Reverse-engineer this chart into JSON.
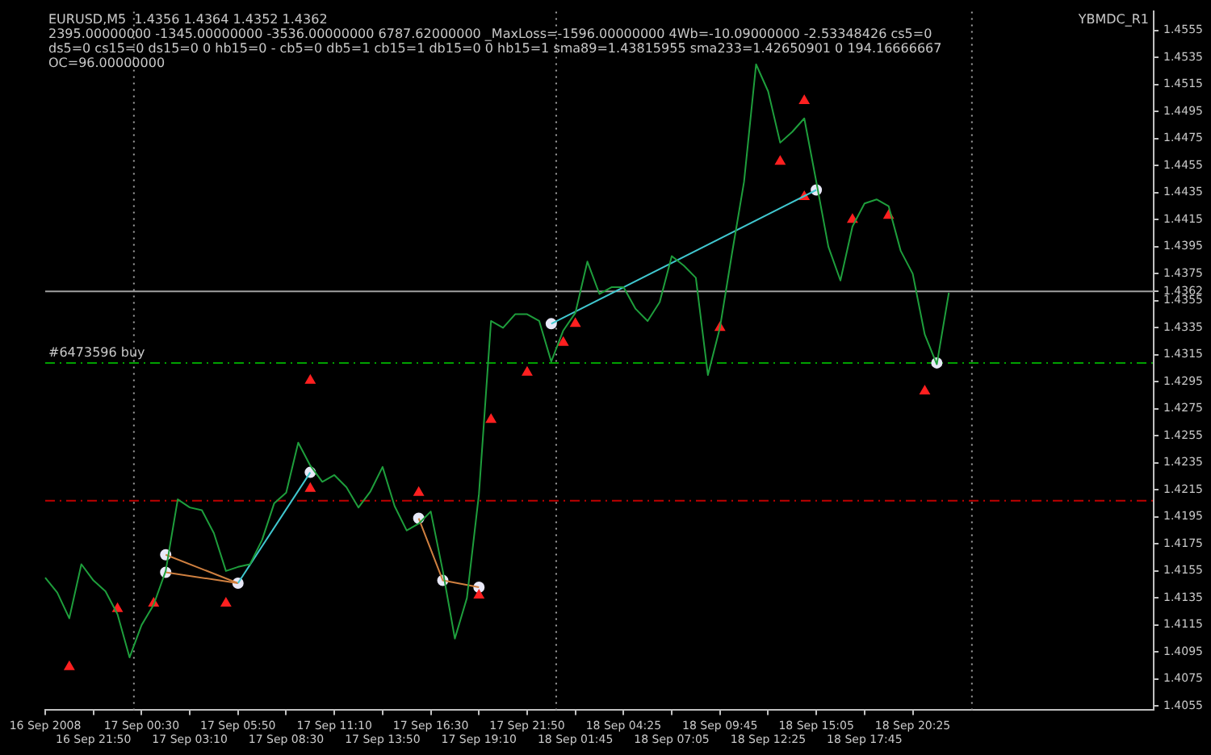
{
  "chart_data": {
    "type": "line",
    "annotations": [
      "EURUSD,M5  1.4356 1.4364 1.4352 1.4362",
      "2395.00000000 -1345.00000000 -3536.00000000 6787.62000000 _MaxLoss=-1596.00000000 4Wb=-10.09000000 -2.53348426 cs5=0 ds5=0 cs15=0 ds15=0 0 hb15=0 - cb5=0 db5=1 cb15=1 db15=0 0 hb15=1 sma89=1.43815955 sma233=1.42650901 0 194.16666667 OC=96.00000000",
      "YBMDC_R1"
    ],
    "categories": [
      "16 Sep 2008",
      null,
      null,
      null,
      "16 Sep 21:50",
      null,
      null,
      null,
      "17 Sep 00:30",
      null,
      null,
      null,
      "17 Sep 03:10",
      null,
      null,
      null,
      "17 Sep 05:50",
      null,
      null,
      null,
      "17 Sep 08:30",
      null,
      null,
      null,
      "17 Sep 11:10",
      null,
      null,
      null,
      "17 Sep 13:50",
      null,
      null,
      null,
      "17 Sep 16:30",
      null,
      null,
      null,
      "17 Sep 19:10",
      null,
      null,
      null,
      "17 Sep 21:50",
      null,
      null,
      null,
      "18 Sep 01:45",
      null,
      null,
      null,
      "18 Sep 04:25",
      null,
      null,
      null,
      "18 Sep 07:05",
      null,
      null,
      null,
      "18 Sep 09:45",
      null,
      null,
      null,
      "18 Sep 12:25",
      null,
      null,
      null,
      "18 Sep 15:05",
      null,
      null,
      null,
      "18 Sep 17:45",
      null,
      null,
      null,
      "18 Sep 20:25",
      null,
      null,
      null,
      null,
      null,
      null,
      null,
      null,
      null,
      null,
      null,
      null,
      null,
      null,
      null,
      null,
      null,
      null,
      null,
      null
    ],
    "series": [
      {
        "color": "#1e9e3c",
        "values": [
          1.415,
          1.4139,
          1.412,
          1.416,
          1.4148,
          1.414,
          1.4123,
          1.4091,
          1.4115,
          1.413,
          1.4155,
          1.4208,
          1.4202,
          1.42,
          1.4183,
          1.4155,
          1.4158,
          1.416,
          1.4178,
          1.4205,
          1.4213,
          1.425,
          1.4233,
          1.4221,
          1.4226,
          1.4217,
          1.4202,
          1.4214,
          1.4232,
          1.4203,
          1.4185,
          1.419,
          1.4199,
          1.4155,
          1.4105,
          1.4135,
          1.4212,
          1.434,
          1.4335,
          1.4345,
          1.4345,
          1.434,
          1.431,
          1.4333,
          1.4346,
          1.4384,
          1.436,
          1.4365,
          1.4365,
          1.4349,
          1.434,
          1.4354,
          1.4388,
          1.4381,
          1.4372,
          1.43,
          1.4335,
          1.439,
          1.4443,
          1.453,
          1.451,
          1.4472,
          1.448,
          1.449,
          1.4443,
          1.4395,
          1.437,
          1.441,
          1.4427,
          1.443,
          1.4425,
          1.4392,
          1.4375,
          1.433,
          1.4308,
          1.4361,
          null,
          null,
          null,
          null,
          null,
          null,
          null,
          null,
          null,
          null,
          null,
          null,
          null,
          null,
          null,
          null,
          null
        ]
      },
      {
        "color": "#40c8d0",
        "values": [
          null,
          null,
          null,
          null,
          null,
          null,
          null,
          null,
          null,
          null,
          null,
          null,
          null,
          null,
          null,
          null,
          1.4146,
          null,
          null,
          null,
          null,
          null,
          1.4228,
          null,
          null,
          null,
          null,
          null,
          null,
          null,
          null,
          null,
          null,
          null,
          null,
          null,
          null,
          null,
          null,
          null,
          null,
          null,
          null,
          null,
          null,
          null,
          null,
          null,
          null,
          null,
          null,
          null,
          null,
          null,
          null,
          null,
          null,
          null,
          null,
          null,
          null,
          null,
          null,
          null,
          null,
          null,
          null,
          null,
          null,
          null,
          null,
          null,
          null,
          null,
          null,
          null,
          null,
          null,
          null,
          null,
          null,
          null,
          null,
          null,
          null,
          null,
          null,
          null,
          null,
          null,
          null,
          null,
          null
        ]
      },
      {
        "color": "#40c8d0",
        "values": [
          null,
          null,
          null,
          null,
          null,
          null,
          null,
          null,
          null,
          null,
          null,
          null,
          null,
          null,
          null,
          null,
          null,
          null,
          null,
          null,
          null,
          null,
          null,
          null,
          null,
          null,
          null,
          null,
          null,
          null,
          null,
          null,
          null,
          null,
          null,
          null,
          null,
          null,
          null,
          null,
          null,
          null,
          1.4338,
          null,
          null,
          null,
          null,
          null,
          null,
          null,
          null,
          null,
          null,
          null,
          null,
          null,
          null,
          null,
          null,
          null,
          null,
          null,
          null,
          null,
          1.4437,
          null,
          null,
          null,
          null,
          null,
          null,
          null,
          null,
          null,
          null,
          null,
          null,
          null,
          null,
          null,
          null,
          null,
          null,
          null,
          null,
          null,
          null,
          null,
          null,
          null,
          null,
          null,
          null
        ]
      },
      {
        "color": "#d08040",
        "values": [
          null,
          null,
          null,
          null,
          null,
          null,
          null,
          null,
          null,
          null,
          1.4167,
          null,
          null,
          null,
          null,
          null,
          1.4146,
          null,
          null,
          null,
          null,
          null,
          null,
          null,
          null,
          null,
          null,
          null,
          null,
          null,
          null,
          null,
          null,
          null,
          null,
          null,
          null,
          null,
          null,
          null,
          null,
          null,
          null,
          null,
          null,
          null,
          null,
          null,
          null,
          null,
          null,
          null,
          null,
          null,
          null,
          null,
          null,
          null,
          null,
          null,
          null,
          null,
          null,
          null,
          null,
          null,
          null,
          null,
          null,
          null,
          null,
          null,
          null,
          null,
          null,
          null,
          null,
          null,
          null,
          null,
          null,
          null,
          null,
          null,
          null,
          null,
          null,
          null,
          null,
          null,
          null,
          null,
          null
        ]
      },
      {
        "color": "#d08040",
        "values": [
          null,
          null,
          null,
          null,
          null,
          null,
          null,
          null,
          null,
          null,
          1.4154,
          null,
          null,
          null,
          null,
          null,
          1.4146,
          null,
          null,
          null,
          null,
          null,
          null,
          null,
          null,
          null,
          null,
          null,
          null,
          null,
          null,
          null,
          null,
          null,
          null,
          null,
          null,
          null,
          null,
          null,
          null,
          null,
          null,
          null,
          null,
          null,
          null,
          null,
          null,
          null,
          null,
          null,
          null,
          null,
          null,
          null,
          null,
          null,
          null,
          null,
          null,
          null,
          null,
          null,
          null,
          null,
          null,
          null,
          null,
          null,
          null,
          null,
          null,
          null,
          null,
          null,
          null,
          null,
          null,
          null,
          null,
          null,
          null,
          null,
          null,
          null,
          null,
          null,
          null,
          null,
          null,
          null,
          null
        ]
      },
      {
        "color": "#d08040",
        "values": [
          null,
          null,
          null,
          null,
          null,
          null,
          null,
          null,
          null,
          null,
          null,
          null,
          null,
          null,
          null,
          null,
          null,
          null,
          null,
          null,
          null,
          null,
          null,
          null,
          null,
          null,
          null,
          null,
          null,
          null,
          null,
          1.4194,
          null,
          1.4148,
          null,
          null,
          1.4143,
          null,
          null,
          null,
          null,
          null,
          null,
          null,
          null,
          null,
          null,
          null,
          null,
          null,
          null,
          null,
          null,
          null,
          null,
          null,
          null,
          null,
          null,
          null,
          null,
          null,
          null,
          null,
          null,
          null,
          null,
          null,
          null,
          null,
          null,
          null,
          null,
          null,
          null,
          null,
          null,
          null,
          null,
          null,
          null,
          null,
          null,
          null,
          null,
          null,
          null,
          null,
          null,
          null,
          null,
          null,
          null
        ]
      },
      {
        "type": "scatter",
        "marker": "triangle",
        "color": "#ff2020",
        "values": [
          null,
          null,
          1.4084,
          null,
          null,
          null,
          1.4127,
          null,
          null,
          1.4131,
          null,
          null,
          null,
          null,
          null,
          1.4131,
          null,
          null,
          null,
          null,
          null,
          null,
          1.4296,
          null,
          null,
          null,
          null,
          null,
          null,
          null,
          null,
          1.4213,
          null,
          null,
          null,
          null,
          1.4137,
          1.4267,
          null,
          null,
          1.4302,
          null,
          null,
          1.4324,
          1.4338,
          null,
          null,
          null,
          null,
          null,
          null,
          null,
          null,
          null,
          null,
          null,
          1.4335,
          null,
          null,
          null,
          null,
          1.4458,
          null,
          1.4503,
          null,
          null,
          null,
          1.4415,
          null,
          null,
          1.4418,
          null,
          null,
          1.4288,
          null,
          null,
          null,
          null,
          null,
          null,
          null,
          null,
          null,
          null,
          null,
          null,
          null,
          null,
          null,
          null,
          null,
          null,
          null
        ]
      },
      {
        "type": "scatter",
        "marker": "triangle",
        "color": "#ff2020",
        "values": [
          null,
          null,
          null,
          null,
          null,
          null,
          null,
          null,
          null,
          null,
          null,
          null,
          null,
          null,
          null,
          null,
          null,
          null,
          null,
          null,
          null,
          null,
          1.4216,
          null,
          null,
          null,
          null,
          null,
          null,
          null,
          null,
          null,
          null,
          null,
          null,
          null,
          null,
          null,
          null,
          null,
          null,
          null,
          null,
          null,
          null,
          null,
          null,
          null,
          null,
          null,
          null,
          null,
          null,
          null,
          null,
          null,
          null,
          null,
          null,
          null,
          null,
          null,
          null,
          1.4432,
          null,
          null,
          null,
          null,
          null,
          null,
          null,
          null,
          null,
          null,
          null,
          null,
          null,
          null,
          null,
          null,
          null,
          null,
          null,
          null,
          null,
          null,
          null,
          null,
          null,
          null,
          null,
          null,
          null
        ]
      },
      {
        "type": "scatter",
        "marker": "circle",
        "color": "#e8e8f8",
        "values": [
          null,
          null,
          null,
          null,
          null,
          null,
          null,
          null,
          null,
          null,
          1.4167,
          null,
          null,
          null,
          null,
          null,
          1.4146,
          null,
          null,
          null,
          null,
          null,
          1.4228,
          null,
          null,
          null,
          null,
          null,
          null,
          null,
          null,
          1.4194,
          null,
          1.4148,
          null,
          null,
          1.4143,
          null,
          null,
          null,
          null,
          null,
          1.4338,
          null,
          null,
          null,
          null,
          null,
          null,
          null,
          null,
          null,
          null,
          null,
          null,
          null,
          null,
          null,
          null,
          null,
          null,
          null,
          null,
          null,
          1.4437,
          null,
          null,
          null,
          null,
          null,
          null,
          null,
          null,
          null,
          1.4309,
          null,
          null,
          null,
          null,
          null,
          null,
          null,
          null,
          null,
          null,
          null,
          null,
          null,
          null,
          null,
          null,
          null,
          null
        ]
      },
      {
        "type": "scatter",
        "marker": "circle",
        "color": "#e8e8f8",
        "values": [
          null,
          null,
          null,
          null,
          null,
          null,
          null,
          null,
          null,
          null,
          1.4154,
          null,
          null,
          null,
          null,
          null,
          null,
          null,
          null,
          null,
          null,
          null,
          null,
          null,
          null,
          null,
          null,
          null,
          null,
          null,
          null,
          null,
          null,
          null,
          null,
          null,
          null,
          null,
          null,
          null,
          null,
          null,
          null,
          null,
          null,
          null,
          null,
          null,
          null,
          null,
          null,
          null,
          null,
          null,
          null,
          null,
          null,
          null,
          null,
          null,
          null,
          null,
          null,
          null,
          null,
          null,
          null,
          null,
          null,
          null,
          null,
          null,
          null,
          null,
          null,
          null,
          null,
          null,
          null,
          null,
          null,
          null,
          null,
          null,
          null,
          null,
          null,
          null,
          null,
          null,
          null,
          null,
          null
        ]
      }
    ],
    "ylim": [
      1.4052,
      1.4569
    ],
    "yticks": [
      1.4055,
      1.4075,
      1.4095,
      1.4115,
      1.4135,
      1.4155,
      1.4175,
      1.4195,
      1.4215,
      1.4235,
      1.4255,
      1.4275,
      1.4295,
      1.4315,
      1.4335,
      1.4355,
      {
        "value": 1.4362,
        "label": "1.4362"
      },
      1.4375,
      1.4395,
      1.4415,
      1.4435,
      1.4455,
      1.4475,
      1.4495,
      1.4515,
      1.4535,
      1.4555
    ],
    "ref_lines": [
      {
        "axis": "y",
        "value": 1.4362,
        "color": "#a0a0a0",
        "line_style": "solid"
      },
      {
        "axis": "y",
        "value": 1.4309,
        "label": "#6473596 buy",
        "color": "#00a000",
        "line_style": "dashed"
      },
      {
        "axis": "y",
        "value": 1.4207,
        "color": "#c00000",
        "line_style": "dashed"
      }
    ],
    "marker": "none",
    "line_style": "solid",
    "legend": false
  }
}
